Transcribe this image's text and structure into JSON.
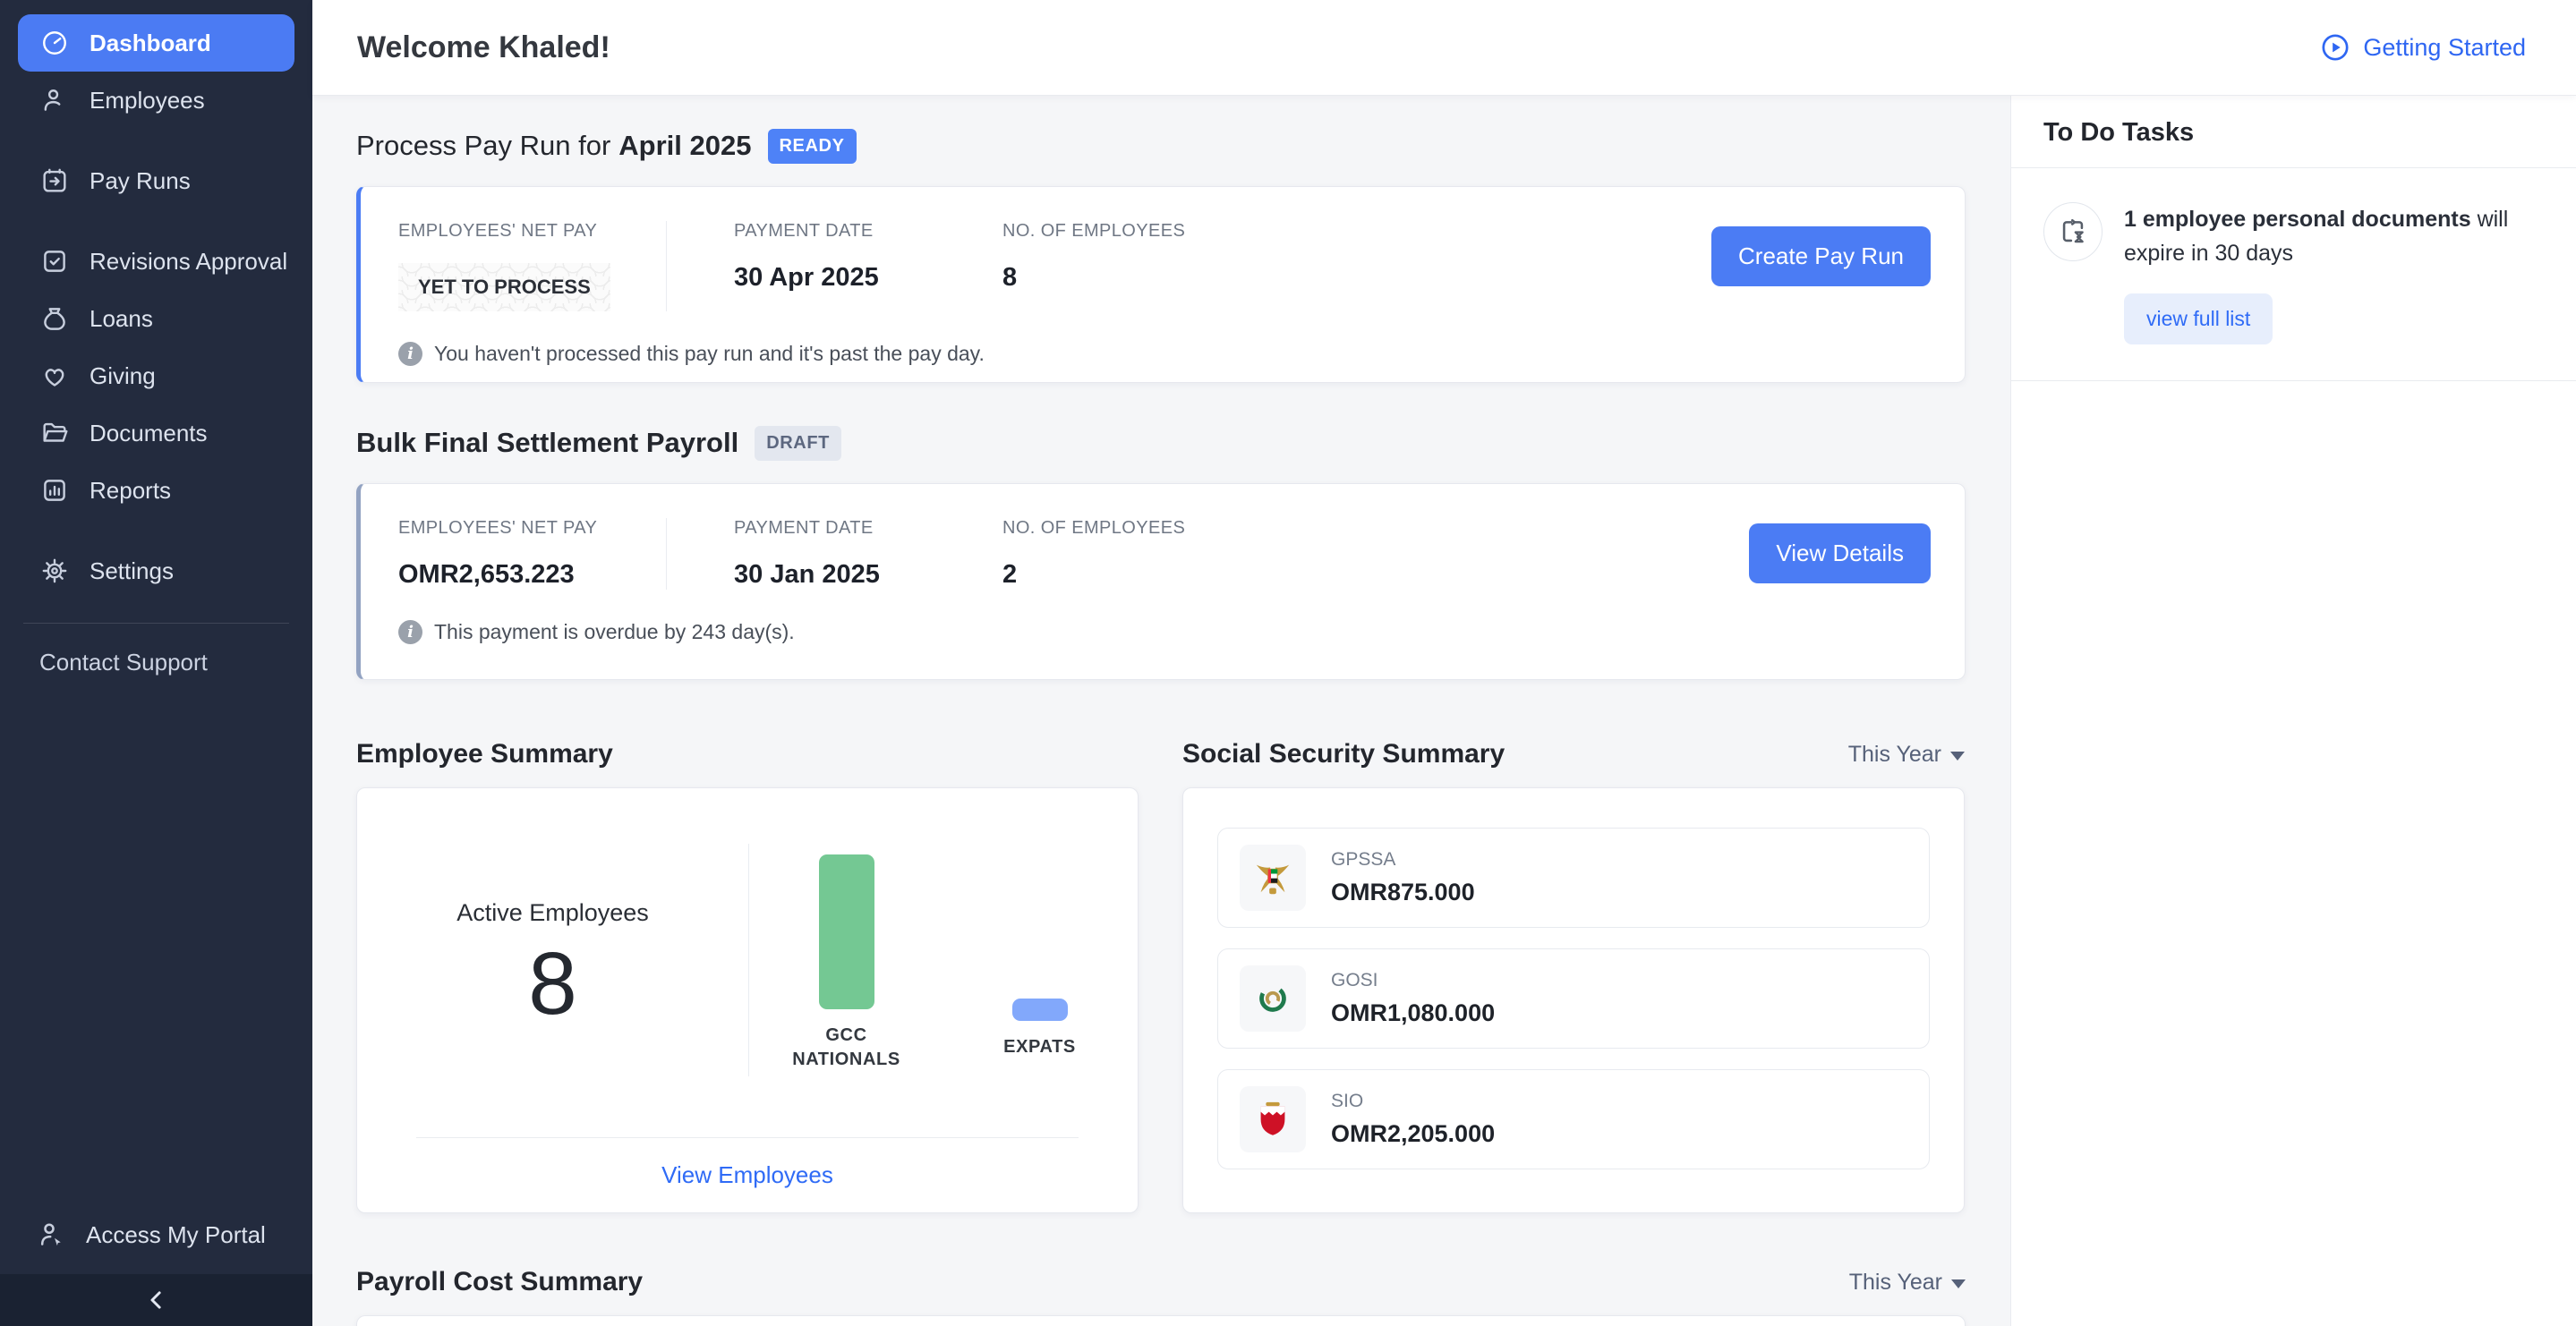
{
  "sidebar": {
    "items": [
      {
        "label": "Dashboard",
        "icon": "dashboard-icon",
        "active": true
      },
      {
        "label": "Employees",
        "icon": "employees-icon",
        "active": false
      },
      {
        "label": "Pay Runs",
        "icon": "pay-runs-icon",
        "active": false
      },
      {
        "label": "Revisions Approval",
        "icon": "revisions-approval-icon",
        "active": false
      },
      {
        "label": "Loans",
        "icon": "loans-icon",
        "active": false
      },
      {
        "label": "Giving",
        "icon": "giving-icon",
        "active": false
      },
      {
        "label": "Documents",
        "icon": "documents-icon",
        "active": false
      },
      {
        "label": "Reports",
        "icon": "reports-icon",
        "active": false
      },
      {
        "label": "Settings",
        "icon": "settings-icon",
        "active": false
      }
    ],
    "contact_support": "Contact Support",
    "access_my_portal": "Access My Portal"
  },
  "header": {
    "welcome": "Welcome Khaled!",
    "getting_started": "Getting Started"
  },
  "pay_run": {
    "title_prefix": "Process Pay Run for",
    "title_period": "April 2025",
    "status": "READY",
    "labels": {
      "net_pay": "EMPLOYEES' NET PAY",
      "payment_date": "PAYMENT DATE",
      "num_employees": "NO. OF EMPLOYEES"
    },
    "net_pay_value": "YET TO PROCESS",
    "payment_date_value": "30 Apr 2025",
    "employees_value": "8",
    "info": "You haven't processed this pay run and it's past the pay day.",
    "button": "Create Pay Run"
  },
  "settlement": {
    "title": "Bulk Final Settlement Payroll",
    "status": "DRAFT",
    "labels": {
      "net_pay": "EMPLOYEES' NET PAY",
      "payment_date": "PAYMENT DATE",
      "num_employees": "NO. OF EMPLOYEES"
    },
    "net_pay_value": "OMR2,653.223",
    "payment_date_value": "30 Jan 2025",
    "employees_value": "2",
    "info": "This payment is overdue by 243 day(s).",
    "button": "View Details"
  },
  "employee_summary": {
    "title": "Employee Summary",
    "active_label": "Active Employees",
    "active_count": "8",
    "view_link": "View Employees",
    "chart_data": {
      "type": "bar",
      "categories": [
        "GCC NATIONALS",
        "EXPATS"
      ],
      "values": [
        7,
        1
      ],
      "colors": [
        "#74c893",
        "#82a8fb"
      ],
      "title": "Employee Summary",
      "xlabel": "",
      "ylabel": "",
      "legend": false,
      "grid": false
    }
  },
  "social_security": {
    "title": "Social Security Summary",
    "filter": "This Year",
    "rows": [
      {
        "name": "GPSSA",
        "amount": "OMR875.000",
        "icon": "uae-emblem-icon"
      },
      {
        "name": "GOSI",
        "amount": "OMR1,080.000",
        "icon": "gosi-logo-icon"
      },
      {
        "name": "SIO",
        "amount": "OMR2,205.000",
        "icon": "bahrain-emblem-icon"
      }
    ]
  },
  "todo": {
    "title": "To Do Tasks",
    "task_bold": "1 employee personal documents",
    "task_rest": " will expire in 30 days",
    "button": "view full list"
  },
  "payroll_cost": {
    "title": "Payroll Cost Summary",
    "filter": "This Year"
  },
  "colors": {
    "accent_blue": "#4b7cf4",
    "status_ready_bg": "#4e82f7",
    "status_draft_bg": "#e3e7ef",
    "bar_green": "#74c893",
    "bar_blue": "#82a8fb",
    "sidebar_bg": "#232b3e",
    "sidebar_active_bg": "#4b7bf3",
    "link_blue": "#2f6bf6"
  }
}
